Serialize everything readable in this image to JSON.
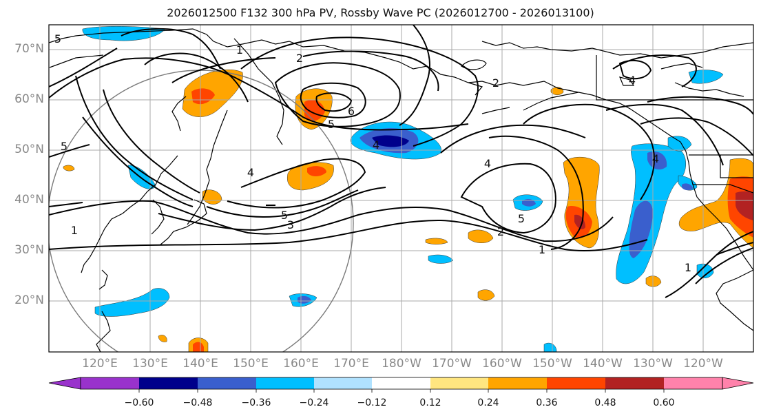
{
  "title": "2026012500 F132 300 hPa PV, Rossby Wave PC (2026012700 - 2026013100)",
  "lat_labels": [
    "70°N",
    "60°N",
    "50°N",
    "40°N",
    "30°N",
    "20°N"
  ],
  "lon_labels": [
    "120°E",
    "130°E",
    "140°E",
    "150°E",
    "160°E",
    "170°E",
    "180°W",
    "170°W",
    "160°W",
    "150°W",
    "140°W",
    "130°W",
    "120°W"
  ],
  "colorbar": {
    "ticks": [
      "−0.60",
      "−0.48",
      "−0.36",
      "−0.24",
      "−0.12",
      "0.12",
      "0.24",
      "0.36",
      "0.48",
      "0.60"
    ],
    "colors": [
      "#9932cc",
      "#00008b",
      "#3a5fcd",
      "#00bfff",
      "#b0e2ff",
      "#ffffff",
      "#ffe680",
      "#ffa500",
      "#ff4500",
      "#b22222",
      "#ff82ab"
    ]
  },
  "contour_labels": [
    "1",
    "2",
    "4",
    "5",
    "6",
    "5",
    "4",
    "5",
    "1",
    "4",
    "3",
    "5",
    "2",
    "4",
    "5",
    "2",
    "1",
    "1",
    "4"
  ],
  "icons": [
    "coastline-map",
    "range-circle",
    "colorbar-triangle-left",
    "colorbar-triangle-right"
  ]
}
